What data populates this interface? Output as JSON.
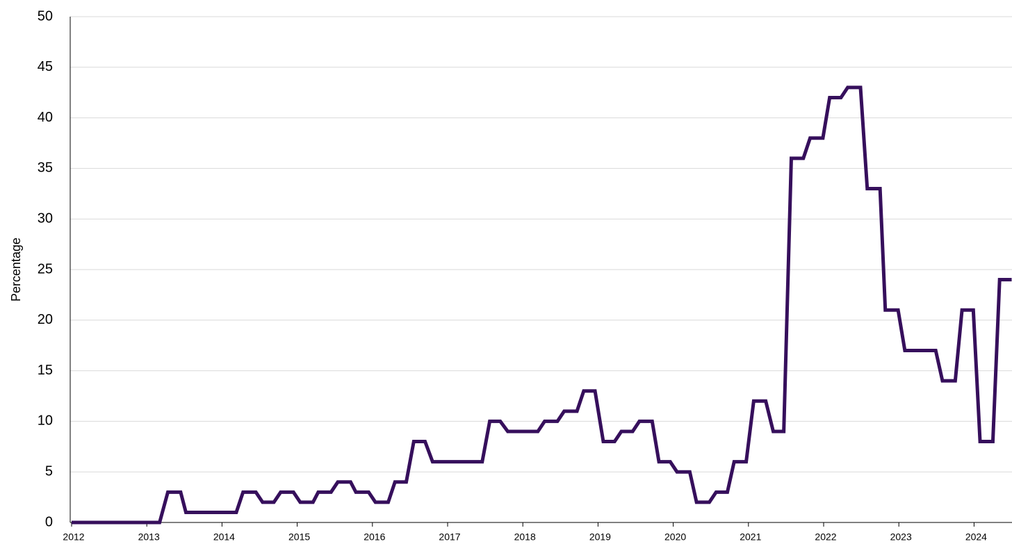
{
  "chart_data": {
    "type": "line",
    "y_label": "Percentage",
    "xlim": [
      2012,
      2024.5
    ],
    "xticks": [
      2012,
      2013,
      2014,
      2015,
      2016,
      2017,
      2018,
      2019,
      2020,
      2021,
      2022,
      2023,
      2024
    ],
    "ylim": [
      0,
      50
    ],
    "yticks": [
      0,
      5,
      10,
      15,
      20,
      25,
      30,
      35,
      40,
      45,
      50
    ],
    "grid": true,
    "series": [
      {
        "color": "#360f5c",
        "x": [
          2012.0,
          2013.17,
          2013.28,
          2013.45,
          2013.52,
          2014.19,
          2014.28,
          2014.45,
          2014.54,
          2014.69,
          2014.78,
          2014.95,
          2015.04,
          2015.21,
          2015.28,
          2015.45,
          2015.54,
          2015.71,
          2015.78,
          2015.95,
          2016.04,
          2016.21,
          2016.3,
          2016.45,
          2016.55,
          2016.7,
          2016.8,
          2017.46,
          2017.56,
          2017.7,
          2017.8,
          2018.2,
          2018.29,
          2018.46,
          2018.55,
          2018.72,
          2018.81,
          2018.96,
          2019.07,
          2019.22,
          2019.31,
          2019.46,
          2019.55,
          2019.72,
          2019.81,
          2019.96,
          2020.05,
          2020.22,
          2020.31,
          2020.48,
          2020.57,
          2020.72,
          2020.81,
          2020.97,
          2021.07,
          2021.23,
          2021.33,
          2021.47,
          2021.57,
          2021.73,
          2021.82,
          2021.99,
          2022.08,
          2022.23,
          2022.32,
          2022.49,
          2022.58,
          2022.75,
          2022.82,
          2022.99,
          2023.08,
          2023.49,
          2023.58,
          2023.75,
          2023.84,
          2023.99,
          2024.08,
          2024.25,
          2024.34,
          2024.5
        ],
        "values": [
          0,
          0,
          3,
          3,
          1,
          1,
          3,
          3,
          2,
          2,
          3,
          3,
          2,
          2,
          3,
          3,
          4,
          4,
          3,
          3,
          2,
          2,
          4,
          4,
          8,
          8,
          6,
          6,
          10,
          10,
          9,
          9,
          10,
          10,
          11,
          11,
          13,
          13,
          8,
          8,
          9,
          9,
          10,
          10,
          6,
          6,
          5,
          5,
          2,
          2,
          3,
          3,
          6,
          6,
          12,
          12,
          9,
          9,
          36,
          36,
          38,
          38,
          42,
          42,
          43,
          43,
          33,
          33,
          21,
          21,
          17,
          17,
          14,
          14,
          21,
          21,
          8,
          8,
          24,
          24
        ]
      }
    ]
  }
}
